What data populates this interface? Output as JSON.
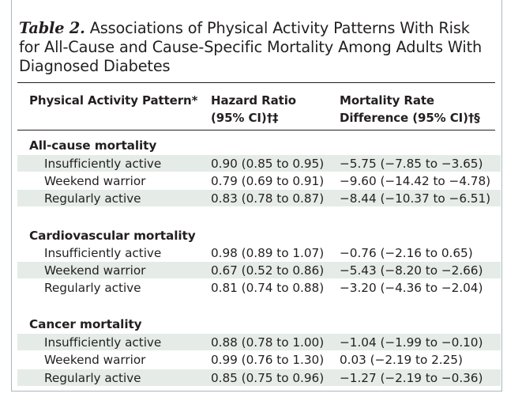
{
  "table": {
    "label": "Table 2.",
    "title": "Associations of Physical Activity Patterns With Risk for All-Cause and Cause-Specific Mortality Among Adults With Diagnosed Diabetes",
    "headers": {
      "col1": "Physical Activity Pattern*",
      "col2_line1": "Hazard Ratio",
      "col2_line2": "(95% CI)†‡",
      "col3_line1": "Mortality Rate",
      "col3_line2": "Difference (95% CI)†§"
    },
    "sections": [
      {
        "name": "All-cause mortality",
        "rows": [
          {
            "pattern": "Insufficiently active",
            "hr": "0.90 (0.85 to 0.95)",
            "diff": "−5.75 (−7.85 to −3.65)"
          },
          {
            "pattern": "Weekend warrior",
            "hr": "0.79 (0.69 to 0.91)",
            "diff": "−9.60 (−14.42 to −4.78)"
          },
          {
            "pattern": "Regularly active",
            "hr": "0.83 (0.78 to 0.87)",
            "diff": "−8.44 (−10.37 to −6.51)"
          }
        ]
      },
      {
        "name": "Cardiovascular mortality",
        "rows": [
          {
            "pattern": "Insufficiently active",
            "hr": "0.98 (0.89 to 1.07)",
            "diff": "−0.76 (−2.16 to 0.65)"
          },
          {
            "pattern": "Weekend warrior",
            "hr": "0.67 (0.52 to 0.86)",
            "diff": "−5.43 (−8.20 to −2.66)"
          },
          {
            "pattern": "Regularly active",
            "hr": "0.81 (0.74 to 0.88)",
            "diff": "−3.20 (−4.36 to −2.04)"
          }
        ]
      },
      {
        "name": "Cancer mortality",
        "rows": [
          {
            "pattern": "Insufficiently active",
            "hr": "0.88 (0.78 to 1.00)",
            "diff": "−1.04 (−1.99 to −0.10)"
          },
          {
            "pattern": "Weekend warrior",
            "hr": "0.99 (0.76 to 1.30)",
            "diff": "0.03 (−2.19 to 2.25)"
          },
          {
            "pattern": "Regularly active",
            "hr": "0.85 (0.75 to 0.96)",
            "diff": "−1.27 (−2.19 to −0.36)"
          }
        ]
      }
    ]
  },
  "colors": {
    "stripe": "#e5ece7",
    "text": "#231f20",
    "frame": "#a7b7c0"
  }
}
